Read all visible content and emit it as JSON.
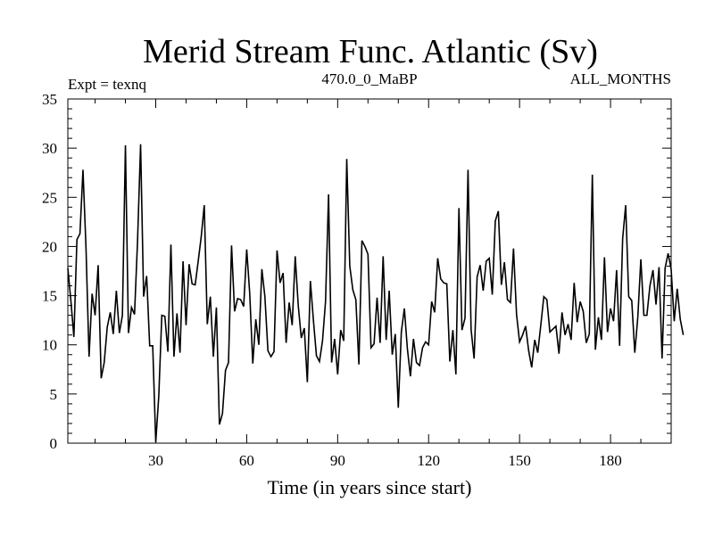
{
  "chart_data": {
    "type": "line",
    "title": "Merid Stream Func. Atlantic (Sv)",
    "subtitle_left": "Expt = texnq",
    "subtitle_center": "470.0_0_MaBP",
    "subtitle_right": "ALL_MONTHS",
    "xlabel": "Time (in years since start)",
    "ylabel": "",
    "xlim": [
      1,
      200
    ],
    "ylim": [
      0,
      35
    ],
    "x_ticks": [
      30,
      60,
      90,
      120,
      150,
      180
    ],
    "y_ticks": [
      0,
      5,
      10,
      15,
      20,
      25,
      30,
      35
    ],
    "grid": false,
    "series": [
      {
        "color": "#000000",
        "x_start": 1,
        "x_step": 1,
        "values": [
          17.8,
          14.5,
          10.8,
          20.7,
          21.3,
          27.8,
          19.8,
          8.8,
          15.2,
          13.0,
          18.1,
          6.6,
          8.2,
          11.8,
          13.3,
          11.1,
          15.5,
          11.2,
          13.0,
          30.3,
          11.2,
          13.8,
          13.1,
          20.6,
          30.4,
          14.9,
          17.0,
          9.9,
          9.9,
          0.1,
          4.8,
          13.0,
          12.9,
          9.3,
          20.2,
          8.8,
          13.2,
          9.2,
          18.5,
          12.0,
          18.2,
          16.2,
          16.1,
          18.5,
          21.0,
          24.2,
          12.1,
          14.9,
          8.8,
          13.8,
          1.9,
          3.0,
          7.4,
          8.2,
          20.1,
          13.4,
          14.7,
          14.6,
          13.9,
          19.7,
          15.2,
          8.1,
          12.6,
          10.0,
          17.7,
          14.9,
          9.4,
          8.8,
          9.3,
          19.6,
          16.3,
          17.3,
          10.2,
          14.3,
          12.0,
          19.0,
          14.0,
          10.7,
          11.7,
          6.2,
          16.5,
          12.5,
          8.9,
          8.3,
          10.4,
          14.4,
          25.3,
          8.2,
          10.6,
          7.0,
          11.5,
          10.4,
          28.9,
          18.0,
          15.6,
          14.6,
          8.0,
          20.6,
          20.0,
          19.2,
          9.7,
          10.1,
          14.8,
          10.2,
          19.0,
          10.5,
          15.5,
          9.0,
          11.1,
          3.6,
          11.3,
          13.7,
          9.6,
          6.8,
          10.6,
          8.2,
          7.9,
          9.7,
          10.3,
          10.0,
          14.4,
          13.3,
          18.8,
          16.7,
          16.3,
          16.2,
          8.3,
          11.5,
          7.0,
          23.9,
          11.5,
          12.7,
          27.8,
          11.6,
          8.6,
          16.9,
          18.1,
          15.5,
          18.5,
          18.8,
          15.1,
          22.6,
          23.6,
          16.1,
          18.4,
          14.6,
          14.3,
          19.8,
          13.1,
          10.3,
          11.0,
          11.9,
          9.4,
          7.7,
          10.5,
          9.2,
          12.0,
          14.9,
          14.6,
          11.3,
          11.6,
          11.9,
          9.1,
          13.3,
          11.0,
          12.1,
          10.5,
          16.3,
          12.3,
          14.4,
          13.4,
          10.2,
          11.1,
          27.3,
          9.5,
          12.8,
          10.5,
          18.9,
          11.3,
          13.7,
          12.4,
          17.6,
          9.9,
          20.8,
          24.2,
          14.9,
          14.5,
          9.2,
          12.8,
          18.7,
          13.0,
          13.0,
          16.0,
          17.6,
          14.1,
          17.9,
          8.6,
          17.8,
          19.3,
          17.7,
          12.4,
          15.7,
          12.6,
          11.0
        ]
      }
    ]
  }
}
